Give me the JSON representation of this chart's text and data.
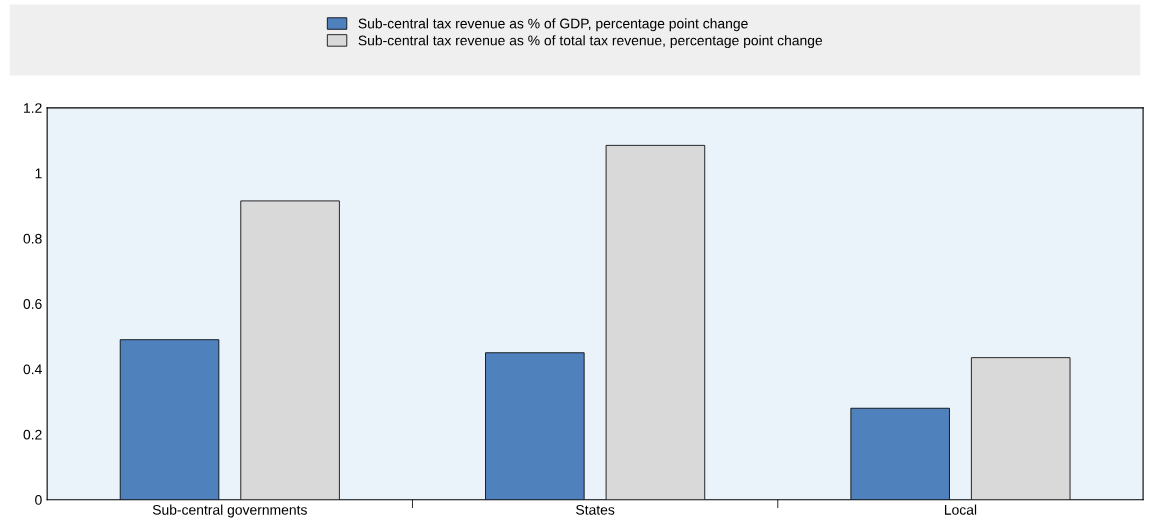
{
  "chart_data": {
    "type": "bar",
    "categories": [
      "Sub-central governments",
      "States",
      "Local"
    ],
    "series": [
      {
        "name": "Sub-central tax revenue as % of GDP, percentage point change",
        "color": "#4f81bd",
        "values": [
          0.49,
          0.45,
          0.28
        ]
      },
      {
        "name": "Sub-central tax revenue as % of total tax revenue, percentage point change",
        "color": "#d9d9d9",
        "values": [
          0.915,
          1.085,
          0.435
        ]
      }
    ],
    "ylim": [
      0,
      1.2
    ],
    "yticks": [
      0,
      {
        "value": 0.2,
        "label": "0.2"
      },
      {
        "value": 0.4,
        "label": "0.4"
      },
      {
        "value": 0.6,
        "label": "0.6"
      },
      {
        "value": 0.8,
        "label": "0.8"
      },
      1,
      {
        "value": 1.2,
        "label": "1.2"
      }
    ],
    "grid": false,
    "legend": "top"
  }
}
